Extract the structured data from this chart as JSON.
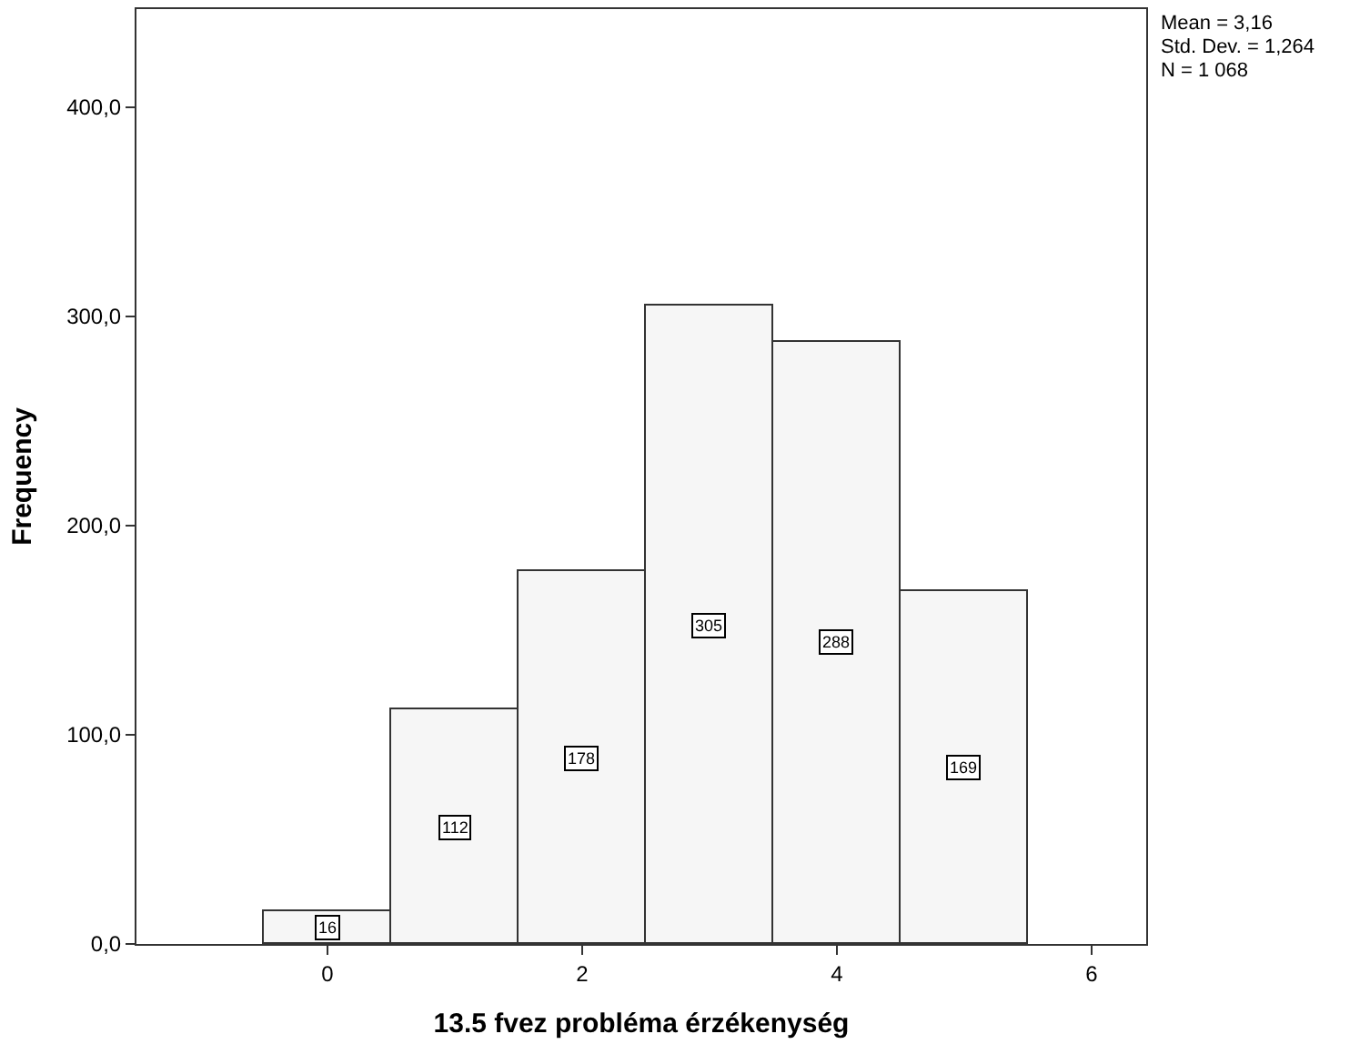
{
  "chart_data": {
    "type": "histogram",
    "xlabel": "13.5 fvez probléma érzékenység",
    "ylabel": "Frequency",
    "bins": [
      -0.5,
      0.5,
      1.5,
      2.5,
      3.5,
      4.5,
      5.5
    ],
    "values": [
      16,
      112,
      178,
      305,
      288,
      169
    ],
    "color": "#f6f6f6",
    "data_labels": true,
    "xlim": [
      -1.5,
      6.43
    ],
    "xticks": [
      0,
      2,
      4,
      6
    ],
    "ylim": [
      0,
      447
    ],
    "yticks": [
      {
        "value": 0,
        "label": "0,0"
      },
      {
        "value": 100,
        "label": "100,0"
      },
      {
        "value": 200,
        "label": "200,0"
      },
      {
        "value": 300,
        "label": "300,0"
      },
      {
        "value": 400,
        "label": "400,0"
      }
    ],
    "annotations": [
      "Mean = 3,16",
      "Std. Dev. = 1,264",
      "N = 1 068"
    ]
  }
}
